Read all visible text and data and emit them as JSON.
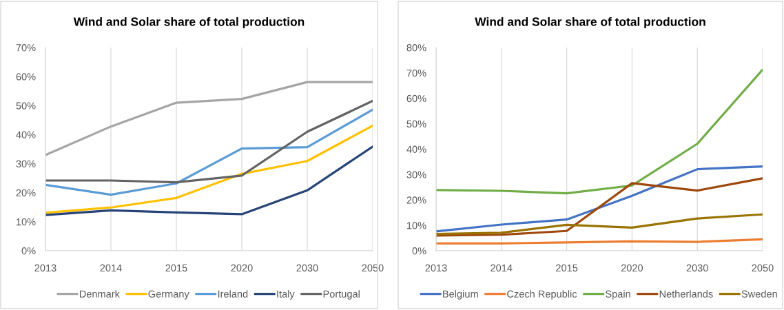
{
  "chart_data": [
    {
      "type": "line",
      "title": "Wind and Solar share of total production",
      "categories": [
        "2013",
        "2014",
        "2015",
        "2020",
        "2030",
        "2050"
      ],
      "series": [
        {
          "name": "Denmark",
          "color": "#a5a5a5",
          "values": [
            33.0,
            42.8,
            51.0,
            52.3,
            58.1,
            58.1
          ]
        },
        {
          "name": "Germany",
          "color": "#ffc000",
          "values": [
            13.1,
            14.9,
            18.2,
            26.5,
            30.9,
            43.1
          ]
        },
        {
          "name": "Ireland",
          "color": "#5b9bd5",
          "values": [
            22.7,
            19.3,
            23.2,
            35.2,
            35.7,
            48.6
          ]
        },
        {
          "name": "Italy",
          "color": "#264478",
          "values": [
            12.3,
            13.9,
            13.2,
            12.6,
            20.8,
            35.9
          ]
        },
        {
          "name": "Portugal",
          "color": "#636363",
          "values": [
            24.2,
            24.2,
            23.6,
            25.9,
            41.0,
            51.6
          ]
        }
      ],
      "ylim": [
        0,
        70
      ],
      "yticks": [
        {
          "value": 0,
          "label": "0%"
        },
        {
          "value": 10,
          "label": "10%"
        },
        {
          "value": 20,
          "label": "20%"
        },
        {
          "value": 30,
          "label": "30%"
        },
        {
          "value": 40,
          "label": "40%"
        },
        {
          "value": 50,
          "label": "50%"
        },
        {
          "value": 60,
          "label": "60%"
        },
        {
          "value": 70,
          "label": "70%"
        }
      ],
      "grid": "x",
      "legend": "bottom"
    },
    {
      "type": "line",
      "title": "Wind and Solar share of total production",
      "categories": [
        "2013",
        "2014",
        "2015",
        "2020",
        "2030",
        "2050"
      ],
      "series": [
        {
          "name": "Belgium",
          "color": "#4472c4",
          "values": [
            7.6,
            10.3,
            12.3,
            21.6,
            32.1,
            33.2
          ]
        },
        {
          "name": "Czech Republic",
          "color": "#ed7d31",
          "values": [
            2.9,
            2.9,
            3.3,
            3.7,
            3.5,
            4.5
          ]
        },
        {
          "name": "Spain",
          "color": "#70ad47",
          "values": [
            23.9,
            23.6,
            22.6,
            25.7,
            42.1,
            71.3
          ]
        },
        {
          "name": "Netherlands",
          "color": "#9e480e",
          "values": [
            6.0,
            6.3,
            7.8,
            26.6,
            23.7,
            28.5
          ]
        },
        {
          "name": "Sweden",
          "color": "#997300",
          "values": [
            6.6,
            7.1,
            10.2,
            9.1,
            12.7,
            14.3
          ]
        }
      ],
      "ylim": [
        0,
        80
      ],
      "yticks": [
        {
          "value": 0,
          "label": "0%"
        },
        {
          "value": 10,
          "label": "10%"
        },
        {
          "value": 20,
          "label": "20%"
        },
        {
          "value": 30,
          "label": "30%"
        },
        {
          "value": 40,
          "label": "40%"
        },
        {
          "value": 50,
          "label": "50%"
        },
        {
          "value": 60,
          "label": "60%"
        },
        {
          "value": 70,
          "label": "70%"
        },
        {
          "value": 80,
          "label": "80%"
        }
      ],
      "grid": "x",
      "legend": "bottom"
    }
  ]
}
